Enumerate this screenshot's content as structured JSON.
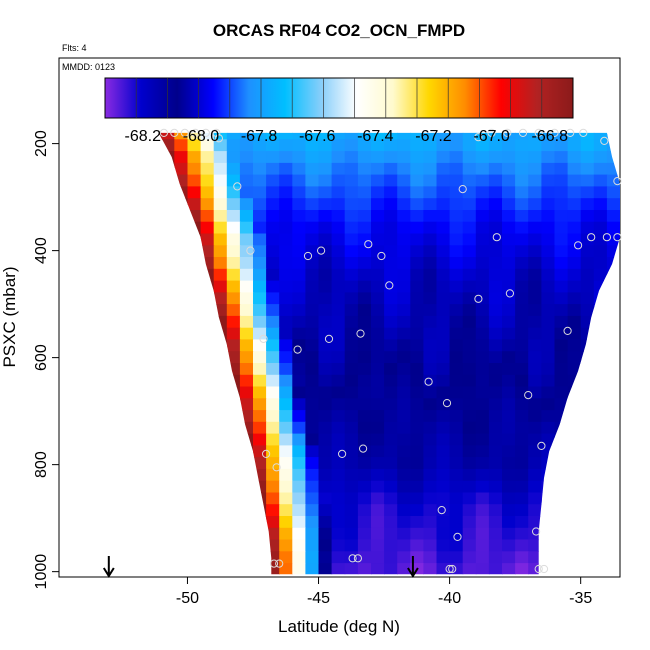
{
  "chart_data": {
    "type": "heatmap",
    "title": "ORCAS RF04 CO2_OCN_FMPD",
    "flights_note": "Flts: 4",
    "date_note": "MMDD: 0123",
    "xlabel": "Latitude (deg N)",
    "ylabel": "PSXC (mbar)",
    "xlim": [
      -54.9,
      -33.5
    ],
    "ylim": [
      1010,
      40
    ],
    "x_ticks": [
      -50,
      -45,
      -40,
      -35
    ],
    "x_tick_labels": [
      "-50",
      "-45",
      "-40",
      "-35"
    ],
    "y_ticks": [
      200,
      400,
      600,
      800,
      1000
    ],
    "y_tick_labels": [
      "200",
      "400",
      "600",
      "800",
      "1000"
    ],
    "colorbar": {
      "range": [
        -68.33,
        -66.72
      ],
      "ticks": [
        -68.2,
        -68.0,
        -67.8,
        -67.6,
        -67.4,
        -67.2,
        -67.0,
        -66.8
      ],
      "tick_labels": [
        "-68.2",
        "-68.0",
        "-67.8",
        "-67.6",
        "-67.4",
        "-67.2",
        "-67.0",
        "-66.8"
      ],
      "gradient": [
        "#8a2be2",
        "#0000cd",
        "#00008b",
        "#0000ff",
        "#1e90ff",
        "#00bfff",
        "#87cefa",
        "#ffffff",
        "#fffacd",
        "#ffd700",
        "#ff8c00",
        "#ff0000",
        "#b22222",
        "#8b1a1a"
      ]
    },
    "cone_edges": [
      {
        "p": 180,
        "left": -51.1,
        "right": -34.0
      },
      {
        "p": 225,
        "left": -50.6,
        "right": -33.8
      },
      {
        "p": 275,
        "left": -50.3,
        "right": -33.5
      },
      {
        "p": 325,
        "left": -49.9,
        "right": -33.5
      },
      {
        "p": 375,
        "left": -49.5,
        "right": -33.5
      },
      {
        "p": 425,
        "left": -49.3,
        "right": -33.8
      },
      {
        "p": 475,
        "left": -49.0,
        "right": -34.3
      },
      {
        "p": 525,
        "left": -48.8,
        "right": -34.6
      },
      {
        "p": 575,
        "left": -48.5,
        "right": -34.8
      },
      {
        "p": 625,
        "left": -48.3,
        "right": -35.1
      },
      {
        "p": 675,
        "left": -48.0,
        "right": -35.5
      },
      {
        "p": 725,
        "left": -47.8,
        "right": -35.8
      },
      {
        "p": 775,
        "left": -47.5,
        "right": -36.2
      },
      {
        "p": 825,
        "left": -47.3,
        "right": -36.4
      },
      {
        "p": 875,
        "left": -47.1,
        "right": -36.5
      },
      {
        "p": 925,
        "left": -46.9,
        "right": -36.6
      },
      {
        "p": 975,
        "left": -46.8,
        "right": -36.6
      },
      {
        "p": 1005,
        "left": -46.8,
        "right": -36.6
      }
    ],
    "layer_mean_values": [
      {
        "p": 180,
        "value": -67.75
      },
      {
        "p": 250,
        "value": -67.85
      },
      {
        "p": 350,
        "value": -67.96
      },
      {
        "p": 450,
        "value": -68.02
      },
      {
        "p": 550,
        "value": -68.05
      },
      {
        "p": 650,
        "value": -68.08
      },
      {
        "p": 725,
        "value": -68.12
      },
      {
        "p": 800,
        "value": -68.14
      },
      {
        "p": 875,
        "value": -68.22
      },
      {
        "p": 950,
        "value": -68.25
      },
      {
        "p": 1000,
        "value": -68.28
      }
    ],
    "observations": [
      [
        -50.9,
        180
      ],
      [
        -50.5,
        180
      ],
      [
        -50.1,
        180
      ],
      [
        -49.7,
        180
      ],
      [
        -49.3,
        180
      ],
      [
        -48.9,
        180
      ],
      [
        -48.8,
        190
      ],
      [
        -38.9,
        188
      ],
      [
        -38.4,
        180
      ],
      [
        -37.8,
        180
      ],
      [
        -37.2,
        180
      ],
      [
        -36.6,
        180
      ],
      [
        -36.0,
        180
      ],
      [
        -35.4,
        180
      ],
      [
        -34.9,
        180
      ],
      [
        -34.1,
        195
      ],
      [
        -48.1,
        280
      ],
      [
        -39.5,
        285
      ],
      [
        -33.6,
        270
      ],
      [
        -47.6,
        400
      ],
      [
        -45.4,
        410
      ],
      [
        -44.9,
        400
      ],
      [
        -43.1,
        388
      ],
      [
        -42.6,
        410
      ],
      [
        -38.2,
        375
      ],
      [
        -35.1,
        390
      ],
      [
        -34.6,
        375
      ],
      [
        -34.0,
        375
      ],
      [
        -33.6,
        375
      ],
      [
        -42.3,
        465
      ],
      [
        -38.9,
        490
      ],
      [
        -37.7,
        480
      ],
      [
        -47.1,
        565
      ],
      [
        -45.8,
        585
      ],
      [
        -44.6,
        565
      ],
      [
        -43.4,
        555
      ],
      [
        -35.5,
        550
      ],
      [
        -40.8,
        645
      ],
      [
        -40.1,
        685
      ],
      [
        -37.0,
        670
      ],
      [
        -47.0,
        780
      ],
      [
        -46.6,
        805
      ],
      [
        -44.1,
        780
      ],
      [
        -43.3,
        770
      ],
      [
        -36.5,
        765
      ],
      [
        -40.3,
        885
      ],
      [
        -39.7,
        935
      ],
      [
        -36.7,
        925
      ],
      [
        -46.7,
        985
      ],
      [
        -46.5,
        985
      ],
      [
        -43.7,
        975
      ],
      [
        -43.5,
        975
      ],
      [
        -40.0,
        995
      ],
      [
        -39.9,
        995
      ],
      [
        -36.6,
        995
      ],
      [
        -36.4,
        995
      ]
    ],
    "flight_markers_lat": [
      -53.0,
      -41.4
    ]
  }
}
